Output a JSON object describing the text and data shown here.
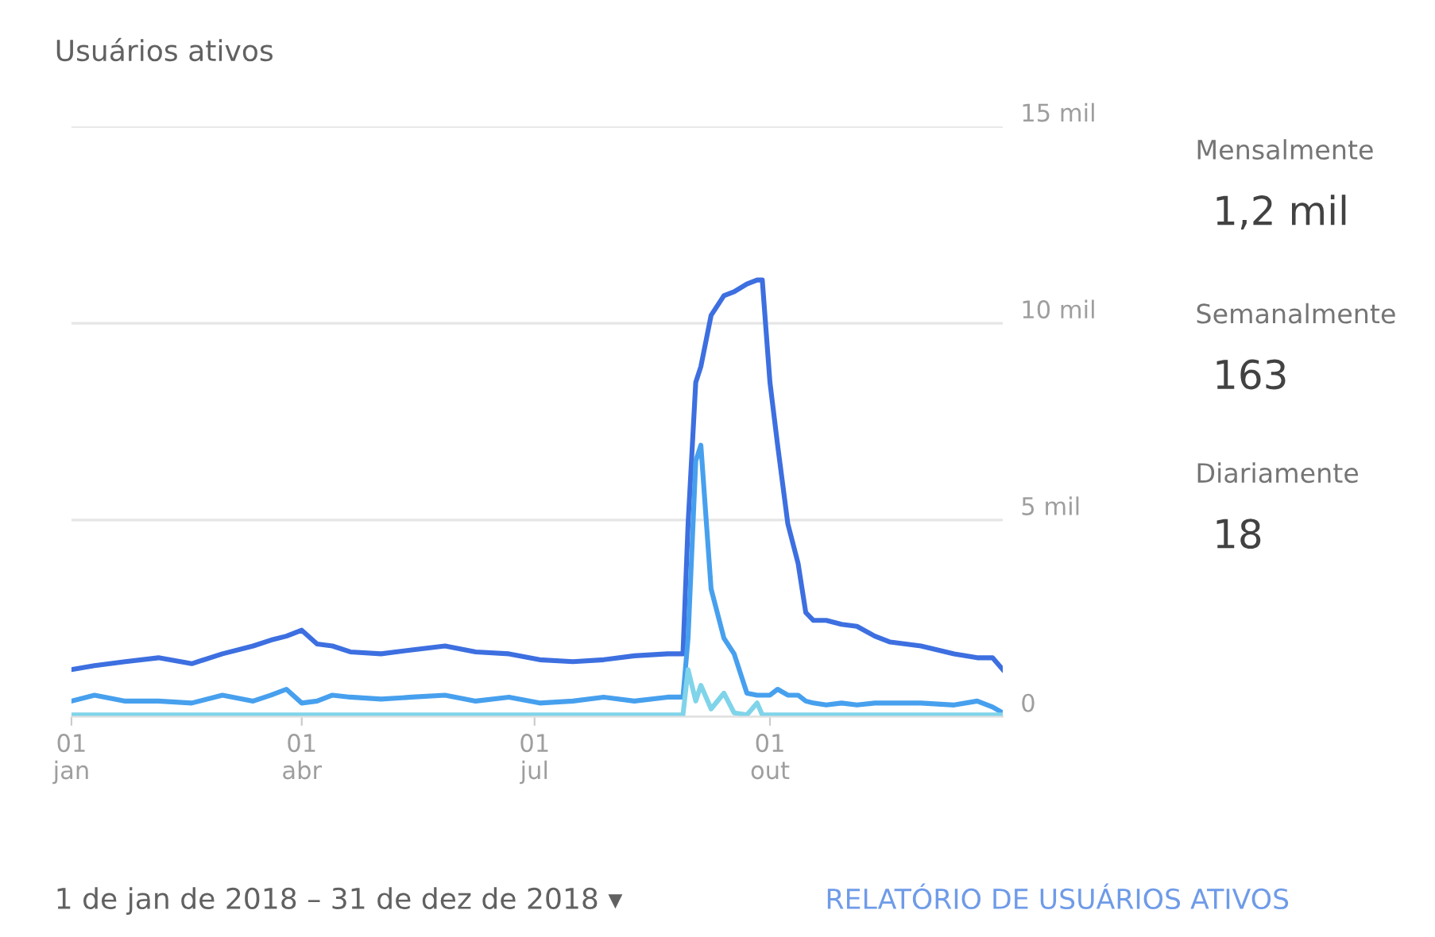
{
  "chart_data": {
    "type": "line",
    "title": "Usuários ativos",
    "x": [
      "2018-01-01",
      "2018-01-10",
      "2018-01-22",
      "2018-02-04",
      "2018-02-17",
      "2018-03-01",
      "2018-03-13",
      "2018-03-20",
      "2018-03-26",
      "2018-04-01",
      "2018-04-07",
      "2018-04-13",
      "2018-04-20",
      "2018-05-02",
      "2018-05-14",
      "2018-05-27",
      "2018-06-08",
      "2018-06-21",
      "2018-07-03",
      "2018-07-16",
      "2018-07-28",
      "2018-08-09",
      "2018-08-22",
      "2018-08-28",
      "2018-08-30",
      "2018-09-02",
      "2018-09-04",
      "2018-09-08",
      "2018-09-13",
      "2018-09-17",
      "2018-09-22",
      "2018-09-26",
      "2018-09-28",
      "2018-10-01",
      "2018-10-04",
      "2018-10-08",
      "2018-10-12",
      "2018-10-15",
      "2018-10-18",
      "2018-10-23",
      "2018-10-29",
      "2018-11-04",
      "2018-11-11",
      "2018-11-17",
      "2018-11-29",
      "2018-12-12",
      "2018-12-21",
      "2018-12-27",
      "2018-12-31"
    ],
    "series": [
      {
        "color": "#3d6fe0",
        "values": [
          1.2,
          1.3,
          1.4,
          1.5,
          1.35,
          1.6,
          1.8,
          1.95,
          2.05,
          2.2,
          1.85,
          1.8,
          1.65,
          1.6,
          1.7,
          1.8,
          1.65,
          1.6,
          1.45,
          1.4,
          1.45,
          1.55,
          1.6,
          1.6,
          4.9,
          8.5,
          8.9,
          10.2,
          10.7,
          10.8,
          11.0,
          11.1,
          11.1,
          8.5,
          6.9,
          4.9,
          3.9,
          2.65,
          2.45,
          2.45,
          2.35,
          2.3,
          2.05,
          1.9,
          1.8,
          1.6,
          1.5,
          1.5,
          1.2
        ]
      },
      {
        "color": "#47a0ee",
        "values": [
          0.4,
          0.55,
          0.4,
          0.4,
          0.35,
          0.55,
          0.4,
          0.55,
          0.7,
          0.35,
          0.4,
          0.55,
          0.5,
          0.45,
          0.5,
          0.55,
          0.4,
          0.5,
          0.35,
          0.4,
          0.5,
          0.4,
          0.5,
          0.5,
          2.0,
          6.5,
          6.9,
          3.25,
          2.0,
          1.6,
          0.6,
          0.55,
          0.55,
          0.55,
          0.7,
          0.55,
          0.55,
          0.4,
          0.35,
          0.3,
          0.35,
          0.3,
          0.35,
          0.35,
          0.35,
          0.3,
          0.4,
          0.25,
          0.1
        ]
      },
      {
        "color": "#80d4ea",
        "values": [
          0.05,
          0.05,
          0.05,
          0.05,
          0.05,
          0.05,
          0.05,
          0.05,
          0.05,
          0.05,
          0.05,
          0.05,
          0.05,
          0.05,
          0.05,
          0.05,
          0.05,
          0.05,
          0.05,
          0.05,
          0.05,
          0.05,
          0.05,
          0.05,
          1.2,
          0.4,
          0.8,
          0.2,
          0.6,
          0.1,
          0.05,
          0.35,
          0.05,
          0.05,
          0.05,
          0.05,
          0.05,
          0.05,
          0.05,
          0.05,
          0.05,
          0.05,
          0.05,
          0.05,
          0.05,
          0.05,
          0.05,
          0.05,
          0.05
        ]
      }
    ],
    "xlim": [
      "2018-01-01",
      "2018-12-31"
    ],
    "xticks": [
      {
        "value": "2018-01-01",
        "label": "01\njan"
      },
      {
        "value": "2018-04-01",
        "label": "01\nabr"
      },
      {
        "value": "2018-07-01",
        "label": "01\njul"
      },
      {
        "value": "2018-10-01",
        "label": "01\nout"
      }
    ],
    "ylim": [
      0,
      15
    ],
    "yticks": [
      {
        "value": 0,
        "label": "0"
      },
      {
        "value": 5,
        "label": "5 mil"
      },
      {
        "value": 10,
        "label": "10 mil"
      },
      {
        "value": 15,
        "label": "15 mil"
      }
    ],
    "grid": "y",
    "marker": "none",
    "line_style": "solid",
    "annotations": [
      "Mensalmente",
      "1,2 mil",
      "Semanalmente",
      "163",
      "Diariamente",
      "18",
      "1 de jan de 2018 – 31 de dez de 2018 ▾",
      "RELATÓRIO DE USUÁRIOS ATIVOS"
    ]
  }
}
